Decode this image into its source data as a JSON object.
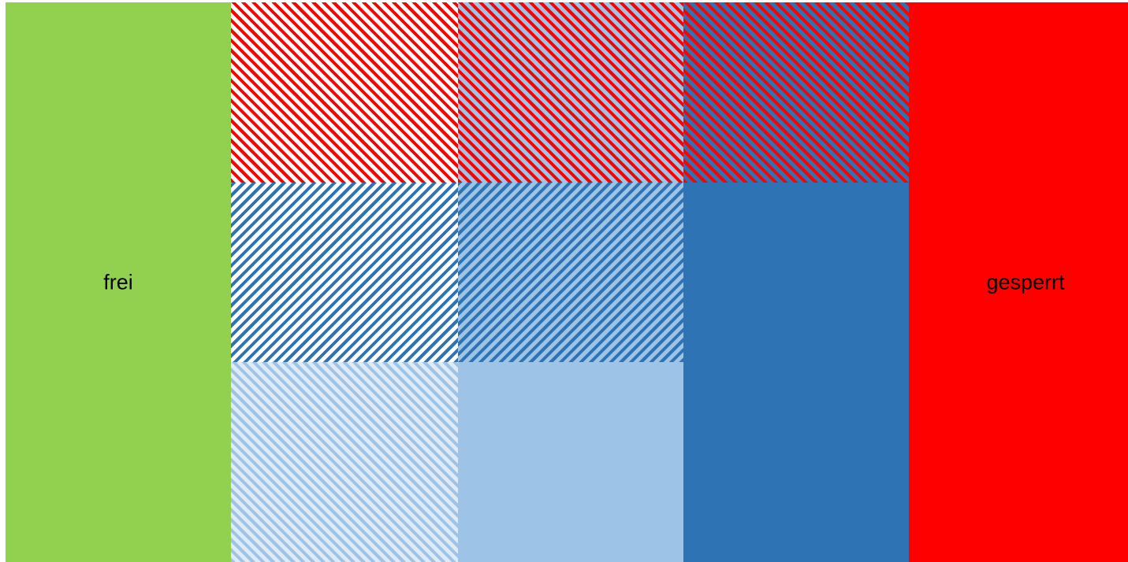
{
  "labels": {
    "free": "frei",
    "locked": "gesperrt"
  },
  "colors": {
    "free": "#92d050",
    "locked": "#ff0000",
    "blue_dark": "#2e74b5",
    "blue_mid": "#9dc3e6",
    "blue_light": "#deebf7",
    "white": "#ffffff"
  },
  "grid": [
    {
      "name": "cell-r1-c1",
      "row": 1,
      "col": 1,
      "fill": "stripes",
      "background": "white",
      "stripe": "locked",
      "direction": "up-right"
    },
    {
      "name": "cell-r1-c2",
      "row": 1,
      "col": 2,
      "fill": "stripes",
      "background": "blue_mid",
      "stripe": "locked",
      "direction": "up-right"
    },
    {
      "name": "cell-r1-c3",
      "row": 1,
      "col": 3,
      "fill": "stripes",
      "background": "blue_dark",
      "stripe": "locked",
      "direction": "up-right"
    },
    {
      "name": "cell-r2-c1",
      "row": 2,
      "col": 1,
      "fill": "stripes",
      "background": "white",
      "stripe": "blue_dark",
      "direction": "down-right"
    },
    {
      "name": "cell-r2-c2",
      "row": 2,
      "col": 2,
      "fill": "stripes",
      "background": "blue_mid",
      "stripe": "blue_dark",
      "direction": "down-right"
    },
    {
      "name": "cell-r23-c3",
      "row": 2,
      "col": 3,
      "fill": "solid",
      "background": "blue_dark"
    },
    {
      "name": "cell-r3-c1",
      "row": 3,
      "col": 1,
      "fill": "stripes",
      "background": "blue_light",
      "stripe": "blue_mid",
      "direction": "up-right"
    },
    {
      "name": "cell-r3-c2",
      "row": 3,
      "col": 2,
      "fill": "solid",
      "background": "blue_mid"
    }
  ]
}
